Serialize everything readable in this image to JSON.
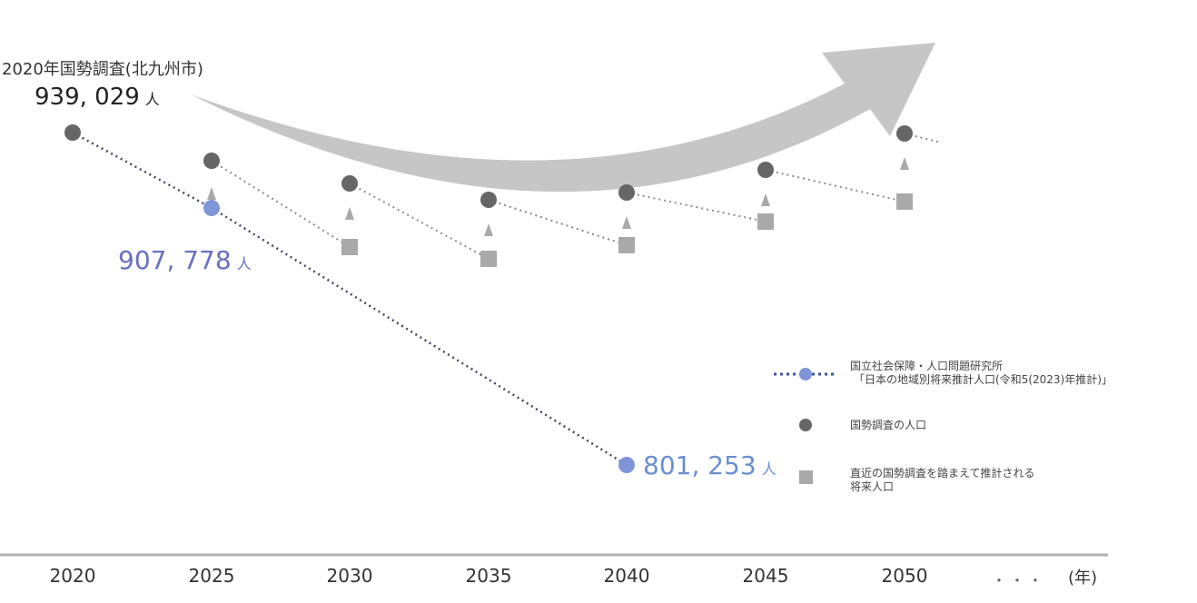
{
  "chart_data": {
    "type": "line",
    "x": [
      2020,
      2025,
      2030,
      2035,
      2040,
      2045,
      2050
    ],
    "x_continues": "・・・",
    "x_unit": "(年)",
    "source_title": "2020年国勢調査(北九州市)",
    "start_value": "939, 029",
    "mid_value": "907, 778",
    "end_value": "801, 253",
    "unit": "人",
    "series": [
      {
        "name": "国立社会保障・人口問題研究所「日本の地域別将来推計人口(令和5(2023)年推計)」",
        "x": [
          2020,
          2025,
          2040
        ],
        "values": [
          939029,
          907778,
          801253
        ],
        "color": "#7f95d8",
        "marker": "circle"
      },
      {
        "name": "国勢調査の人口",
        "x": [
          2020,
          2025,
          2030,
          2035,
          2040,
          2045,
          2050
        ],
        "color": "#666666",
        "marker": "circle"
      },
      {
        "name": "直近の国勢調査を踏まえて推計される将来人口",
        "x": [
          2030,
          2035,
          2040,
          2045,
          2050
        ],
        "color": "#a9a9a9",
        "marker": "square"
      }
    ],
    "legend": {
      "position": "right",
      "items": [
        "国立社会保障・人口問題研究所\n「日本の地域別将来推計人口(令和5(2023)年推計)」",
        "国勢調査の人口",
        "直近の国勢調査を踏まえて推計される\n将来人口"
      ]
    },
    "grid": false
  }
}
